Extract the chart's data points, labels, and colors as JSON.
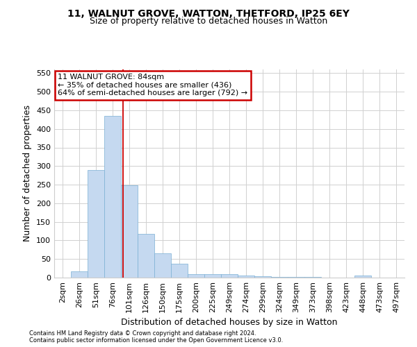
{
  "title": "11, WALNUT GROVE, WATTON, THETFORD, IP25 6EY",
  "subtitle": "Size of property relative to detached houses in Watton",
  "xlabel": "Distribution of detached houses by size in Watton",
  "ylabel": "Number of detached properties",
  "footer_line1": "Contains HM Land Registry data © Crown copyright and database right 2024.",
  "footer_line2": "Contains public sector information licensed under the Open Government Licence v3.0.",
  "bar_labels": [
    "2sqm",
    "26sqm",
    "51sqm",
    "76sqm",
    "101sqm",
    "126sqm",
    "150sqm",
    "175sqm",
    "200sqm",
    "225sqm",
    "249sqm",
    "274sqm",
    "299sqm",
    "324sqm",
    "349sqm",
    "373sqm",
    "398sqm",
    "423sqm",
    "448sqm",
    "473sqm",
    "497sqm"
  ],
  "bar_values": [
    0,
    17,
    290,
    435,
    248,
    117,
    65,
    38,
    10,
    10,
    10,
    6,
    4,
    1,
    1,
    1,
    0,
    0,
    5,
    0,
    0
  ],
  "bar_color": "#c5d9f0",
  "bar_edge_color": "#7bafd4",
  "red_line_x": 3.62,
  "red_line_color": "#cc0000",
  "annotation_text": "11 WALNUT GROVE: 84sqm\n← 35% of detached houses are smaller (436)\n64% of semi-detached houses are larger (792) →",
  "annotation_box_color": "#cc0000",
  "ylim": [
    0,
    560
  ],
  "yticks": [
    0,
    50,
    100,
    150,
    200,
    250,
    300,
    350,
    400,
    450,
    500,
    550
  ],
  "background_color": "#ffffff",
  "grid_color": "#d0d0d0",
  "title_fontsize": 10,
  "subtitle_fontsize": 9,
  "xlabel_fontsize": 9,
  "ylabel_fontsize": 9,
  "tick_fontsize": 8,
  "annotation_fontsize": 8,
  "footer_fontsize": 6,
  "bar_width": 1.0
}
